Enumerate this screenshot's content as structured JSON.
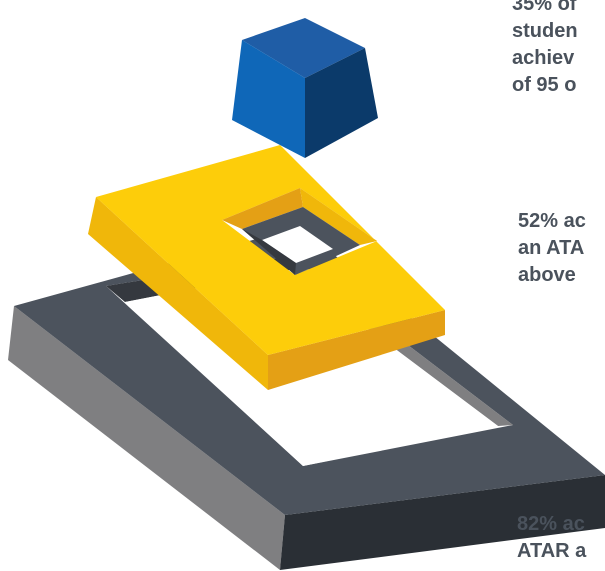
{
  "stats": [
    {
      "lines": [
        "35% of",
        "studen",
        "achiev",
        "of 95 o"
      ]
    },
    {
      "lines": [
        "52% ac",
        "an ATA",
        "above"
      ]
    },
    {
      "lines": [
        "82% ac",
        "ATAR a"
      ]
    }
  ],
  "colors": {
    "cube_top": "#1f5da6",
    "cube_left": "#0f67b8",
    "cube_right": "#0b3a6a",
    "gold_top": "#fdcd0a",
    "gold_front": "#f0b70a",
    "gold_shadow": "#e4a015",
    "grey_top": "#4c535d",
    "grey_dark": "#35393f",
    "grey_left": "#7f7f81",
    "grey_right": "#2a2f35",
    "text": "#4a525c"
  },
  "icons": [
    "blue-cube-icon",
    "gold-square-frame-icon",
    "grey-square-frame-icon"
  ]
}
